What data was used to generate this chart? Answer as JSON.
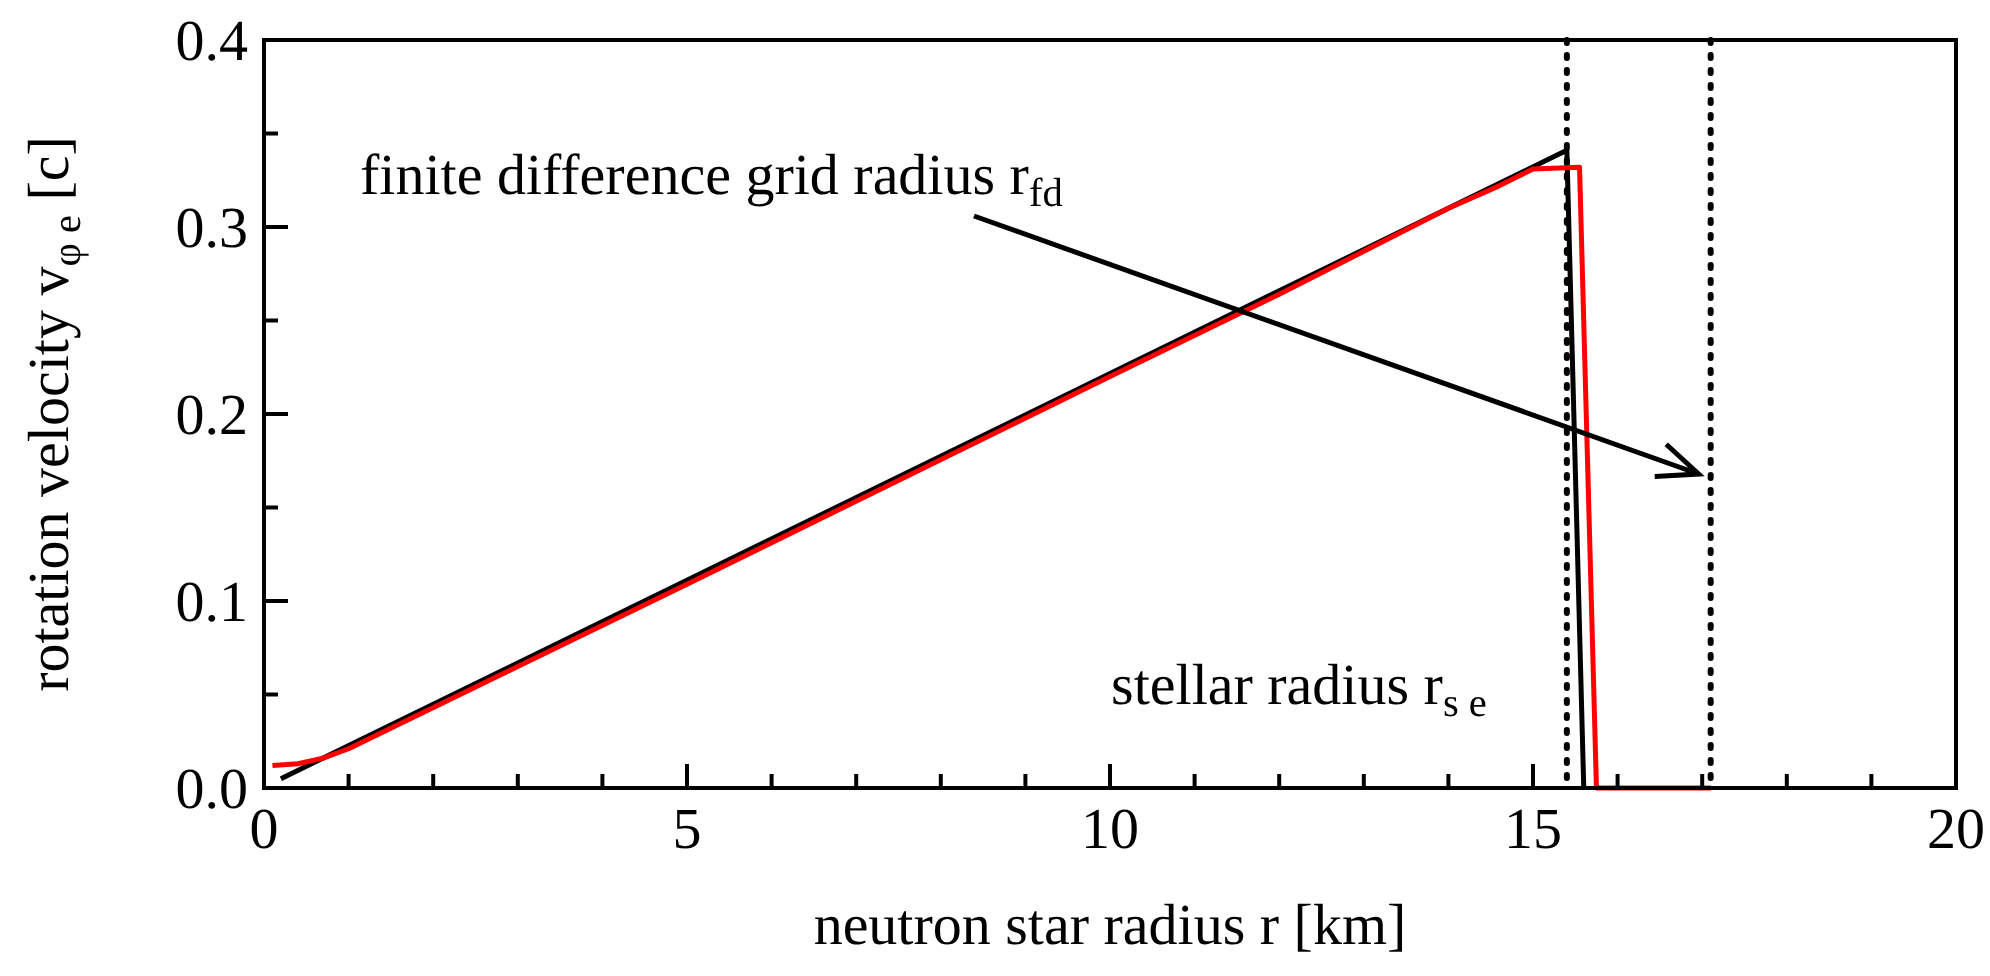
{
  "chart_data": {
    "type": "line",
    "xlabel": "neutron star radius r [km]",
    "ylabel": "rotation velocity v$_{φ e}$ [c]",
    "xlim": [
      0,
      20
    ],
    "ylim": [
      0,
      0.4
    ],
    "xticks": [
      0,
      {
        "value": 1,
        "label": null
      },
      {
        "value": 2,
        "label": null
      },
      {
        "value": 3,
        "label": null
      },
      {
        "value": 4,
        "label": null
      },
      5,
      {
        "value": 6,
        "label": null
      },
      {
        "value": 7,
        "label": null
      },
      {
        "value": 8,
        "label": null
      },
      {
        "value": 9,
        "label": null
      },
      10,
      {
        "value": 11,
        "label": null
      },
      {
        "value": 12,
        "label": null
      },
      {
        "value": 13,
        "label": null
      },
      {
        "value": 14,
        "label": null
      },
      15,
      {
        "value": 16,
        "label": null
      },
      {
        "value": 17,
        "label": null
      },
      {
        "value": 18,
        "label": null
      },
      {
        "value": 19,
        "label": null
      },
      20
    ],
    "yticks": [
      {
        "value": 0,
        "label": "0.0"
      },
      {
        "value": 0.05,
        "label": null
      },
      0.1,
      {
        "value": 0.15,
        "label": null
      },
      0.2,
      {
        "value": 0.25,
        "label": null
      },
      0.3,
      {
        "value": 0.35,
        "label": null
      },
      0.4
    ],
    "series": [
      {
        "color": "#000000",
        "x": [
          0.2,
          15.4,
          15.6
        ],
        "values": [
          0.005,
          0.341,
          0
        ]
      },
      {
        "color": "#ff0000",
        "x": [
          0.1,
          0.4,
          0.7,
          1.0,
          5,
          10,
          12,
          13,
          14,
          14.6,
          15.0,
          15.55,
          15.75,
          17.1
        ],
        "values": [
          0.012,
          0.013,
          0.016,
          0.021,
          0.109,
          0.22,
          0.264,
          0.287,
          0.31,
          0.322,
          0.331,
          0.332,
          0,
          0
        ]
      }
    ],
    "ref_lines": [
      {
        "axis": "x",
        "value": 15.4,
        "label": "stellar radius r$_{s e}$",
        "line_style": "dotted",
        "color": "#000000"
      },
      {
        "axis": "x",
        "value": 17.1,
        "label": "finite difference grid radius r$_{fd}$",
        "line_style": "dotted",
        "color": "#000000"
      }
    ],
    "grid": false,
    "line_style": "solid",
    "marker": "none"
  }
}
